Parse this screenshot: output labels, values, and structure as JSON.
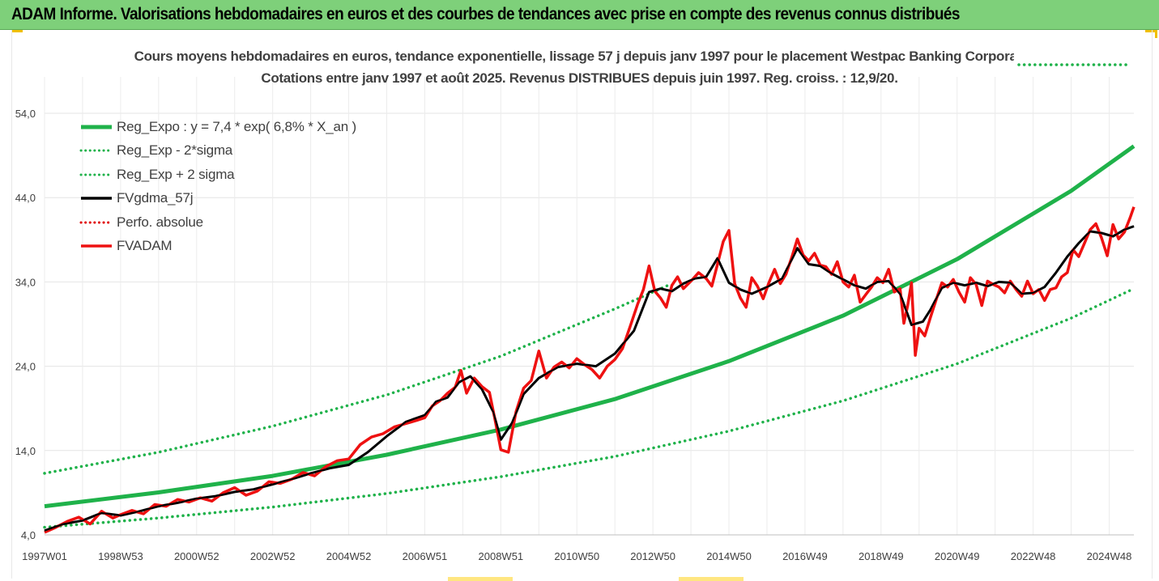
{
  "banner": {
    "title": "ADAM Informe. Valorisations hebdomadaires en euros et des courbes de tendances avec prise en compte des revenus connus distribués"
  },
  "chart_data": {
    "type": "line",
    "title": "Cours moyens hebdomadaires en euros, tendance exponentielle, lissage 57 j depuis janv 1997 pour le placement Westpac Banking Corporati",
    "subtitle": "Cotations entre janv 1997 et août 2025.  Revenus DISTRIBUES depuis juin 1997.  Reg. croiss. : 12,9/20.",
    "xlabel": "",
    "ylabel": "",
    "ylim": [
      4,
      58
    ],
    "yticks": [
      "4,0",
      "14,0",
      "24,0",
      "34,0",
      "44,0",
      "54,0"
    ],
    "ytick_values": [
      4,
      14,
      24,
      34,
      44,
      54
    ],
    "xlim": [
      1997.0,
      2025.65
    ],
    "xticks": [
      "1997W01",
      "1998W53",
      "2000W52",
      "2002W52",
      "2004W52",
      "2006W51",
      "2008W51",
      "2010W50",
      "2012W50",
      "2014W50",
      "2016W49",
      "2018W49",
      "2020W49",
      "2022W48",
      "2024W48"
    ],
    "xtick_years": [
      1997.0,
      1999.0,
      2001.0,
      2003.0,
      2005.0,
      2007.0,
      2009.0,
      2011.0,
      2013.0,
      2015.0,
      2017.0,
      2019.0,
      2021.0,
      2023.0,
      2025.0
    ],
    "grid": true,
    "legend_position": "top-left",
    "series": [
      {
        "name": "Reg_Expo : y = 7,4 * exp( 6,8% *  X_an )",
        "style": "solid",
        "color": "#1fb24a",
        "x": [
          1997.0,
          2000.0,
          2003.0,
          2006.0,
          2009.0,
          2012.0,
          2015.0,
          2018.0,
          2021.0,
          2024.0,
          2025.65
        ],
        "y": [
          7.4,
          9.04,
          11.0,
          13.5,
          16.5,
          20.1,
          24.6,
          30.0,
          36.7,
          44.8,
          50.1
        ]
      },
      {
        "name": "Reg_Exp - 2*sigma",
        "style": "dotted",
        "color": "#1fb24a",
        "x": [
          1997.0,
          2000.0,
          2003.0,
          2006.0,
          2009.0,
          2012.0,
          2015.0,
          2018.0,
          2021.0,
          2024.0,
          2025.65
        ],
        "y": [
          4.9,
          6.0,
          7.3,
          8.9,
          10.9,
          13.3,
          16.3,
          19.9,
          24.3,
          29.7,
          33.2
        ]
      },
      {
        "name": "Reg_Exp + 2 sigma",
        "style": "dotted",
        "color": "#1fb24a",
        "x": [
          1997.0,
          2000.0,
          2003.0,
          2006.0,
          2009.0,
          2012.0,
          2013.4
        ],
        "y": [
          11.3,
          13.8,
          16.9,
          20.6,
          25.2,
          30.8,
          33.6
        ]
      },
      {
        "name": "FVgdma_57j",
        "style": "solid",
        "color": "#000000",
        "x": [
          1997.0,
          1997.5,
          1998.0,
          1998.5,
          1999.0,
          1999.5,
          2000.0,
          2000.5,
          2001.0,
          2001.5,
          2002.0,
          2002.5,
          2003.0,
          2003.5,
          2004.0,
          2004.5,
          2005.0,
          2005.5,
          2006.0,
          2006.5,
          2007.0,
          2007.3,
          2007.6,
          2007.9,
          2008.2,
          2008.5,
          2008.8,
          2009.0,
          2009.3,
          2009.6,
          2010.0,
          2010.5,
          2011.0,
          2011.5,
          2012.0,
          2012.5,
          2012.9,
          2013.2,
          2013.5,
          2013.8,
          2014.1,
          2014.4,
          2014.7,
          2015.0,
          2015.3,
          2015.6,
          2016.0,
          2016.4,
          2016.8,
          2017.1,
          2017.4,
          2017.7,
          2018.0,
          2018.3,
          2018.6,
          2018.9,
          2019.2,
          2019.5,
          2019.8,
          2020.1,
          2020.3,
          2020.6,
          2020.9,
          2021.2,
          2021.5,
          2021.8,
          2022.1,
          2022.4,
          2022.7,
          2023.0,
          2023.3,
          2023.6,
          2023.9,
          2024.2,
          2024.5,
          2024.8,
          2025.1,
          2025.4,
          2025.65
        ],
        "y": [
          4.5,
          5.3,
          5.7,
          6.6,
          6.3,
          6.8,
          7.4,
          7.8,
          8.3,
          8.6,
          9.1,
          9.4,
          10.0,
          10.6,
          11.3,
          11.9,
          12.3,
          13.8,
          15.7,
          17.4,
          18.2,
          19.8,
          20.3,
          22.1,
          22.8,
          21.3,
          18.6,
          15.3,
          17.3,
          20.7,
          22.6,
          23.9,
          24.3,
          24.0,
          25.5,
          28.2,
          32.8,
          33.2,
          32.9,
          33.8,
          34.4,
          34.6,
          36.8,
          33.9,
          33.1,
          32.6,
          33.4,
          34.4,
          38.0,
          36.1,
          35.9,
          35.0,
          34.3,
          33.6,
          33.2,
          34.0,
          34.1,
          32.6,
          28.9,
          29.3,
          30.7,
          33.3,
          33.9,
          33.6,
          33.9,
          33.5,
          34.0,
          33.9,
          32.6,
          32.7,
          33.4,
          35.1,
          37.0,
          38.6,
          40.0,
          39.8,
          39.4,
          40.2,
          40.6
        ]
      },
      {
        "name": "Perfo. absolue",
        "style": "dotted",
        "color": "#e00000",
        "x": [],
        "y": []
      },
      {
        "name": "FVADAM",
        "style": "solid",
        "color": "#ee1111",
        "x": [
          1997.0,
          1997.3,
          1997.6,
          1997.9,
          1998.2,
          1998.5,
          1998.8,
          1999.0,
          1999.3,
          1999.6,
          1999.9,
          2000.2,
          2000.5,
          2000.8,
          2001.1,
          2001.4,
          2001.7,
          2002.0,
          2002.3,
          2002.6,
          2002.9,
          2003.2,
          2003.5,
          2003.8,
          2004.1,
          2004.4,
          2004.7,
          2005.0,
          2005.3,
          2005.6,
          2005.9,
          2006.2,
          2006.5,
          2006.8,
          2007.0,
          2007.2,
          2007.4,
          2007.6,
          2007.8,
          2007.95,
          2008.1,
          2008.3,
          2008.5,
          2008.7,
          2008.85,
          2009.0,
          2009.2,
          2009.4,
          2009.6,
          2009.8,
          2010.0,
          2010.2,
          2010.4,
          2010.6,
          2010.8,
          2011.0,
          2011.2,
          2011.4,
          2011.6,
          2011.8,
          2012.0,
          2012.2,
          2012.4,
          2012.6,
          2012.75,
          2012.9,
          2013.05,
          2013.2,
          2013.35,
          2013.5,
          2013.65,
          2013.8,
          2014.0,
          2014.2,
          2014.4,
          2014.55,
          2014.7,
          2014.85,
          2015.0,
          2015.15,
          2015.3,
          2015.45,
          2015.6,
          2015.75,
          2015.9,
          2016.05,
          2016.2,
          2016.35,
          2016.5,
          2016.65,
          2016.8,
          2016.95,
          2017.1,
          2017.25,
          2017.4,
          2017.55,
          2017.7,
          2017.85,
          2018.0,
          2018.15,
          2018.3,
          2018.45,
          2018.6,
          2018.75,
          2018.9,
          2019.05,
          2019.2,
          2019.35,
          2019.5,
          2019.6,
          2019.7,
          2019.8,
          2019.9,
          2020.0,
          2020.15,
          2020.3,
          2020.45,
          2020.6,
          2020.75,
          2020.9,
          2021.05,
          2021.2,
          2021.35,
          2021.5,
          2021.65,
          2021.8,
          2021.95,
          2022.1,
          2022.25,
          2022.4,
          2022.55,
          2022.7,
          2022.85,
          2023.0,
          2023.15,
          2023.3,
          2023.45,
          2023.6,
          2023.75,
          2023.9,
          2024.05,
          2024.2,
          2024.35,
          2024.5,
          2024.65,
          2024.8,
          2024.95,
          2025.1,
          2025.25,
          2025.4,
          2025.55,
          2025.65
        ],
        "y": [
          4.3,
          4.9,
          5.6,
          6.1,
          5.3,
          6.8,
          6.0,
          6.4,
          6.9,
          6.5,
          7.6,
          7.4,
          8.2,
          7.9,
          8.4,
          8.0,
          9.0,
          9.6,
          8.7,
          9.2,
          10.3,
          10.1,
          10.6,
          11.4,
          11.0,
          12.1,
          12.8,
          13.0,
          14.7,
          15.6,
          16.0,
          16.8,
          17.2,
          17.6,
          17.9,
          19.3,
          19.9,
          20.8,
          21.5,
          23.5,
          20.8,
          22.6,
          21.6,
          20.9,
          17.6,
          14.1,
          13.8,
          18.6,
          21.4,
          22.3,
          25.8,
          22.6,
          23.9,
          24.5,
          23.8,
          24.9,
          24.2,
          23.6,
          22.6,
          24.0,
          24.8,
          26.1,
          28.7,
          31.4,
          33.1,
          35.9,
          32.9,
          32.1,
          31.0,
          33.6,
          34.6,
          33.2,
          34.1,
          35.1,
          34.4,
          33.5,
          36.1,
          38.8,
          40.1,
          33.8,
          32.1,
          31.0,
          34.5,
          33.5,
          32.0,
          33.9,
          35.5,
          33.8,
          34.9,
          36.9,
          39.1,
          37.2,
          36.5,
          37.4,
          36.0,
          35.8,
          34.9,
          36.4,
          34.0,
          33.4,
          34.8,
          31.6,
          32.5,
          33.4,
          34.5,
          33.9,
          35.5,
          32.8,
          33.2,
          29.1,
          31.2,
          33.9,
          25.3,
          28.5,
          27.6,
          29.8,
          31.9,
          33.9,
          33.4,
          34.3,
          32.8,
          31.6,
          34.5,
          33.7,
          31.2,
          34.1,
          33.7,
          33.4,
          32.7,
          34.1,
          33.1,
          32.3,
          34.1,
          32.6,
          33.1,
          31.8,
          33.1,
          33.3,
          34.6,
          35.1,
          37.8,
          37.0,
          38.6,
          40.2,
          40.9,
          39.2,
          37.1,
          40.8,
          39.1,
          39.9,
          41.6,
          42.9
        ]
      }
    ]
  }
}
